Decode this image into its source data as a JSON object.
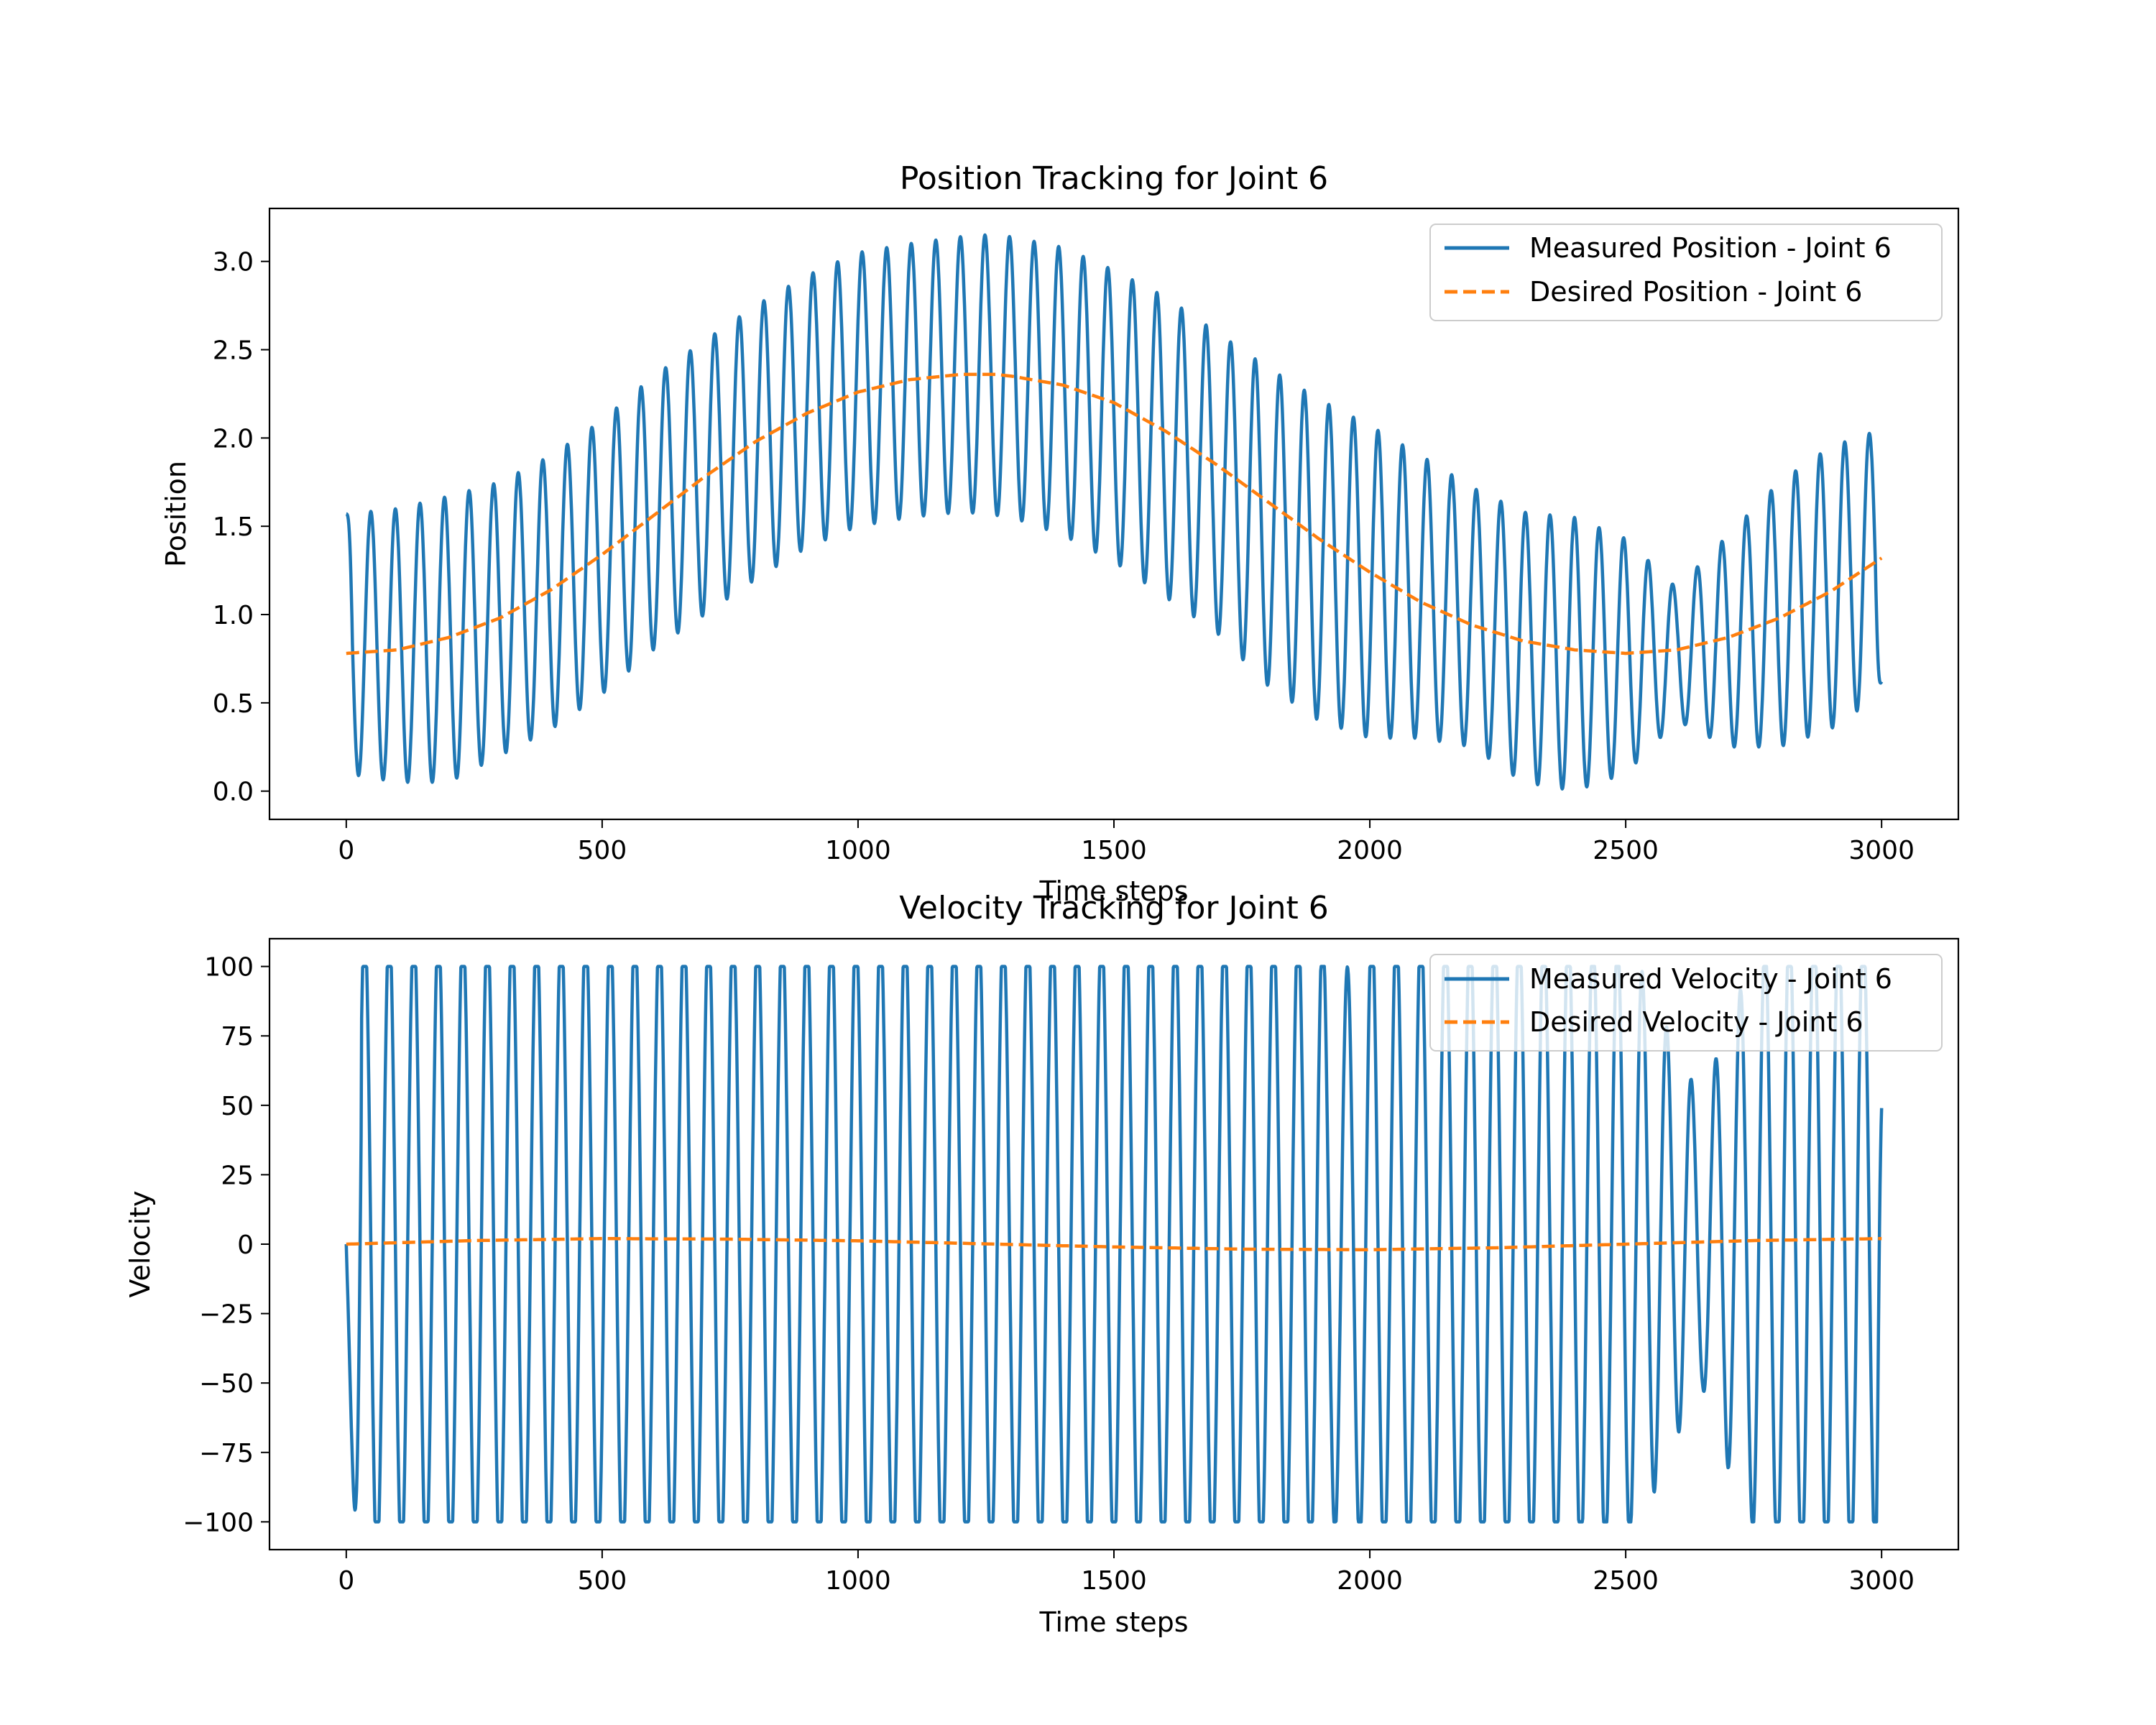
{
  "colors": {
    "measured": "#1f77b4",
    "desired": "#ff7f0e"
  },
  "chart_data": [
    {
      "type": "line",
      "title": "Position Tracking for Joint 6",
      "xlabel": "Time steps",
      "ylabel": "Position",
      "xlim": [
        -150,
        3150
      ],
      "ylim": [
        -0.16,
        3.3
      ],
      "xticks": [
        0,
        500,
        1000,
        1500,
        2000,
        2500,
        3000
      ],
      "yticks": [
        0.0,
        0.5,
        1.0,
        1.5,
        2.0,
        2.5,
        3.0
      ],
      "xtick_labels": [
        "0",
        "500",
        "1000",
        "1500",
        "2000",
        "2500",
        "3000"
      ],
      "ytick_labels": [
        "0.0",
        "0.5",
        "1.0",
        "1.5",
        "2.0",
        "2.5",
        "3.0"
      ],
      "legend_position": "top-right",
      "series": [
        {
          "name": "Measured Position - Joint 6",
          "style": "solid",
          "color": "#1f77b4",
          "oscillation_period": 48,
          "x": [
            0,
            100,
            200,
            300,
            400,
            500,
            600,
            700,
            800,
            900,
            1000,
            1100,
            1200,
            1250,
            1300,
            1400,
            1500,
            1600,
            1700,
            1800,
            1900,
            2000,
            2100,
            2200,
            2300,
            2400,
            2500,
            2600,
            2700,
            2800,
            2900,
            3000
          ],
          "peak": [
            1.57,
            1.6,
            1.67,
            1.75,
            1.9,
            2.1,
            2.35,
            2.55,
            2.75,
            2.92,
            3.05,
            3.1,
            3.14,
            3.15,
            3.14,
            3.08,
            2.95,
            2.8,
            2.6,
            2.4,
            2.22,
            2.07,
            1.9,
            1.72,
            1.58,
            1.55,
            1.43,
            1.15,
            1.45,
            1.75,
            1.95,
            2.05
          ],
          "trough": [
            0.1,
            0.05,
            0.05,
            0.2,
            0.35,
            0.55,
            0.8,
            1.0,
            1.2,
            1.38,
            1.5,
            1.55,
            1.58,
            1.57,
            1.55,
            1.45,
            1.3,
            1.1,
            0.9,
            0.6,
            0.4,
            0.3,
            0.3,
            0.25,
            0.05,
            0.0,
            0.1,
            0.4,
            0.25,
            0.25,
            0.35,
            0.55
          ],
          "end_value": 0.62
        },
        {
          "name": "Desired Position - Joint 6",
          "style": "dashed",
          "color": "#ff7f0e",
          "x": [
            0,
            100,
            200,
            300,
            400,
            500,
            600,
            700,
            800,
            900,
            1000,
            1100,
            1200,
            1270,
            1300,
            1400,
            1500,
            1600,
            1700,
            1800,
            1900,
            2000,
            2100,
            2200,
            2300,
            2400,
            2500,
            2600,
            2700,
            2800,
            2900,
            3000
          ],
          "y": [
            0.78,
            0.8,
            0.87,
            0.98,
            1.14,
            1.34,
            1.56,
            1.78,
            1.98,
            2.14,
            2.26,
            2.33,
            2.36,
            2.36,
            2.35,
            2.3,
            2.2,
            2.04,
            1.85,
            1.64,
            1.43,
            1.24,
            1.07,
            0.94,
            0.85,
            0.8,
            0.78,
            0.8,
            0.87,
            0.98,
            1.13,
            1.32
          ]
        }
      ]
    },
    {
      "type": "line",
      "title": "Velocity Tracking for Joint 6",
      "xlabel": "Time steps",
      "ylabel": "Velocity",
      "xlim": [
        -150,
        3150
      ],
      "ylim": [
        -110,
        110
      ],
      "xticks": [
        0,
        500,
        1000,
        1500,
        2000,
        2500,
        3000
      ],
      "yticks": [
        -100,
        -75,
        -50,
        -25,
        0,
        25,
        50,
        75,
        100
      ],
      "xtick_labels": [
        "0",
        "500",
        "1000",
        "1500",
        "2000",
        "2500",
        "3000"
      ],
      "ytick_labels": [
        "−100",
        "−75",
        "−50",
        "−25",
        "0",
        "25",
        "50",
        "75",
        "100"
      ],
      "legend_position": "top-right",
      "series": [
        {
          "name": "Measured Velocity - Joint 6",
          "style": "solid",
          "color": "#1f77b4",
          "oscillation_period": 48,
          "clip": 100,
          "x": [
            0,
            100,
            500,
            1000,
            1500,
            1900,
            1950,
            2000,
            2100,
            2200,
            2300,
            2400,
            2500,
            2550,
            2600,
            2650,
            2700,
            2750,
            2800,
            2900,
            3000
          ],
          "amplitude": [
            100,
            100,
            100,
            100,
            100,
            100,
            85,
            100,
            100,
            100,
            100,
            100,
            95,
            80,
            60,
            45,
            70,
            90,
            100,
            100,
            100
          ],
          "start_dip": -95,
          "end_value": 49
        },
        {
          "name": "Desired Velocity - Joint 6",
          "style": "dashed",
          "color": "#ff7f0e",
          "x": [
            0,
            250,
            500,
            750,
            1000,
            1250,
            1500,
            1750,
            2000,
            2250,
            2500,
            2750,
            3000
          ],
          "y": [
            0.0,
            1.3,
            2.0,
            1.8,
            1.2,
            0.1,
            -1.0,
            -1.8,
            -2.0,
            -1.3,
            0.0,
            1.3,
            2.0
          ]
        }
      ]
    }
  ]
}
